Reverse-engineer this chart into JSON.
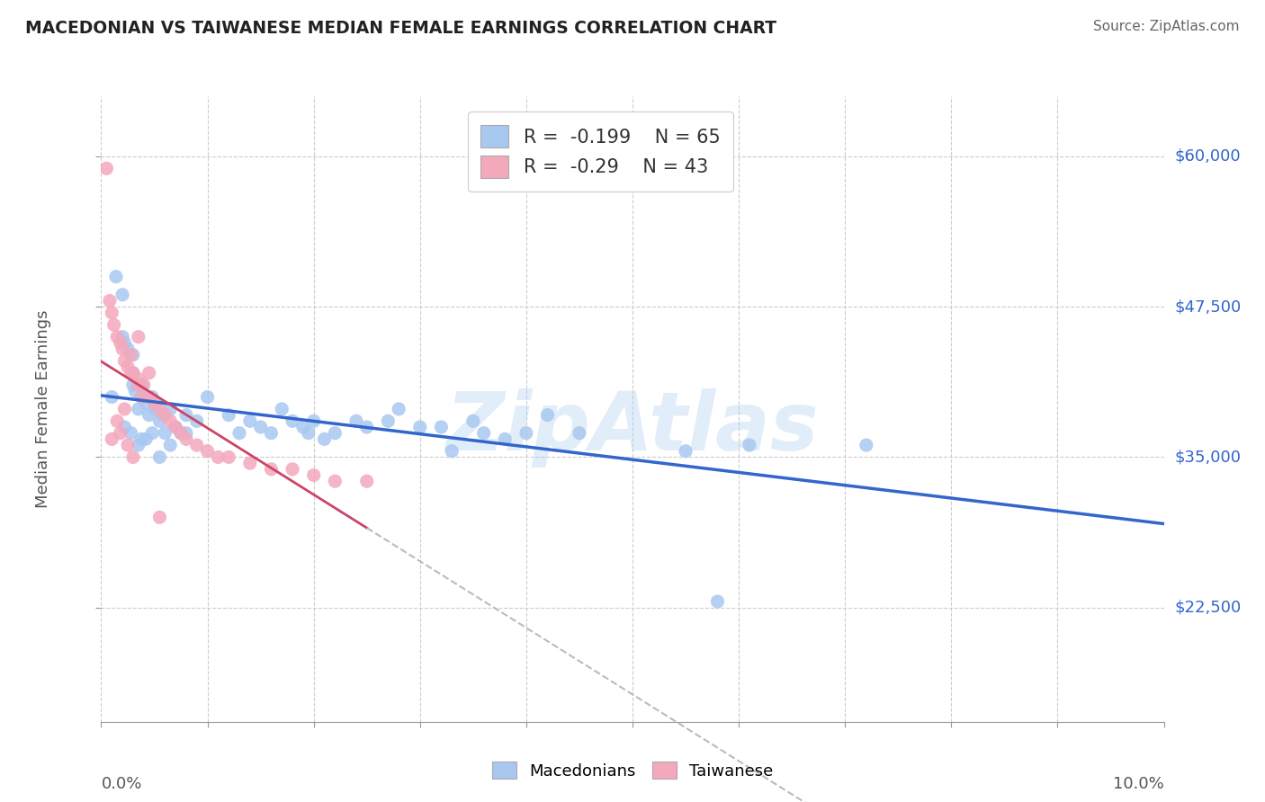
{
  "title": "MACEDONIAN VS TAIWANESE MEDIAN FEMALE EARNINGS CORRELATION CHART",
  "source": "Source: ZipAtlas.com",
  "ylabel": "Median Female Earnings",
  "xmin": 0.0,
  "xmax": 0.1,
  "ymin": 13000,
  "ymax": 65000,
  "yticks": [
    22500,
    35000,
    47500,
    60000
  ],
  "ytick_labels": [
    "$22,500",
    "$35,000",
    "$47,500",
    "$60,000"
  ],
  "macedonian_R": -0.199,
  "macedonian_N": 65,
  "taiwanese_R": -0.29,
  "taiwanese_N": 43,
  "macedonian_color": "#A8C8F0",
  "taiwanese_color": "#F4A8BC",
  "macedonian_line_color": "#3366CC",
  "taiwanese_line_color": "#CC4466",
  "taiwanese_dashed_color": "#BBBBBB",
  "watermark": "ZipAtlas",
  "mac_x": [
    0.001,
    0.0014,
    0.002,
    0.002,
    0.0022,
    0.0025,
    0.003,
    0.003,
    0.003,
    0.0032,
    0.0035,
    0.0038,
    0.004,
    0.0042,
    0.0045,
    0.0048,
    0.005,
    0.0052,
    0.0055,
    0.0058,
    0.006,
    0.0065,
    0.007,
    0.0075,
    0.008,
    0.009,
    0.01,
    0.012,
    0.013,
    0.014,
    0.015,
    0.016,
    0.017,
    0.018,
    0.019,
    0.02,
    0.021,
    0.022,
    0.024,
    0.025,
    0.027,
    0.028,
    0.03,
    0.032,
    0.035,
    0.038,
    0.04,
    0.042,
    0.045,
    0.036,
    0.0195,
    0.0055,
    0.0035,
    0.0038,
    0.0042,
    0.0028,
    0.0065,
    0.008,
    0.0022,
    0.0048,
    0.033,
    0.058,
    0.072,
    0.055,
    0.061
  ],
  "mac_y": [
    40000,
    50000,
    48500,
    45000,
    44500,
    44000,
    42000,
    43500,
    41000,
    40500,
    39000,
    41000,
    40000,
    39500,
    38500,
    40000,
    39000,
    39500,
    38000,
    38500,
    37000,
    39000,
    37500,
    37000,
    38500,
    38000,
    40000,
    38500,
    37000,
    38000,
    37500,
    37000,
    39000,
    38000,
    37500,
    38000,
    36500,
    37000,
    38000,
    37500,
    38000,
    39000,
    37500,
    37500,
    38000,
    36500,
    37000,
    38500,
    37000,
    37000,
    37000,
    35000,
    36000,
    36500,
    36500,
    37000,
    36000,
    37000,
    37500,
    37000,
    35500,
    23000,
    36000,
    35500,
    36000
  ],
  "tai_x": [
    0.0005,
    0.0008,
    0.001,
    0.0012,
    0.0015,
    0.0018,
    0.002,
    0.0022,
    0.0025,
    0.0028,
    0.003,
    0.0035,
    0.004,
    0.0045,
    0.005,
    0.0055,
    0.006,
    0.0065,
    0.007,
    0.0075,
    0.008,
    0.009,
    0.01,
    0.011,
    0.012,
    0.014,
    0.016,
    0.018,
    0.02,
    0.022,
    0.025,
    0.0035,
    0.0028,
    0.0045,
    0.0035,
    0.0038,
    0.0022,
    0.0015,
    0.0018,
    0.001,
    0.0025,
    0.003,
    0.0055
  ],
  "tai_y": [
    59000,
    48000,
    47000,
    46000,
    45000,
    44500,
    44000,
    43000,
    42500,
    42000,
    42000,
    41500,
    41000,
    40000,
    39500,
    39000,
    38500,
    38000,
    37500,
    37000,
    36500,
    36000,
    35500,
    35000,
    35000,
    34500,
    34000,
    34000,
    33500,
    33000,
    33000,
    45000,
    43500,
    42000,
    41000,
    40000,
    39000,
    38000,
    37000,
    36500,
    36000,
    35000,
    30000
  ]
}
